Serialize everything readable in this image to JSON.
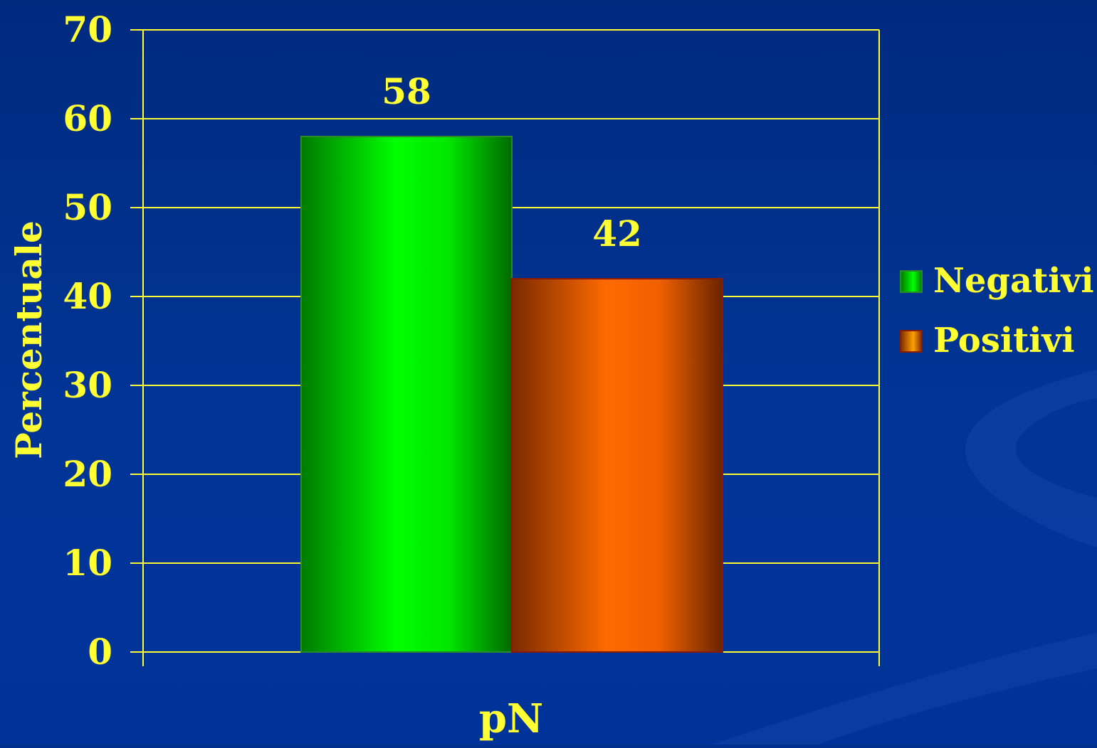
{
  "chart_data": {
    "type": "bar",
    "categories": [
      "pN"
    ],
    "series": [
      {
        "name": "Negativi",
        "values": [
          58
        ],
        "color": "#00ee00"
      },
      {
        "name": "Positivi",
        "values": [
          42
        ],
        "color": "#ff6600"
      }
    ],
    "data_labels": [
      "58",
      "42"
    ],
    "xlabel": "pN",
    "ylabel": "Percentuale",
    "ylim": [
      0,
      70
    ],
    "yticks": [
      0,
      10,
      20,
      30,
      40,
      50,
      60,
      70
    ],
    "grid": true,
    "legend_position": "right",
    "colors": {
      "background": "#00308f",
      "text": "#ffff33",
      "gridlines": "#ffff33"
    }
  }
}
